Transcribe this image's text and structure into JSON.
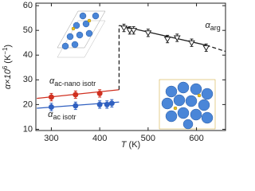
{
  "chart_data": {
    "type": "scatter",
    "x_label": {
      "symbol": "T",
      "unit": "(K)"
    },
    "y_label": {
      "symbol": "α×10",
      "exponent": "6",
      "unit": "(K",
      "unit_exponent": "−1",
      "close": ")"
    },
    "xlim": [
      268,
      660
    ],
    "xticks": [
      300,
      400,
      500,
      600
    ],
    "ylim": [
      9.5,
      61
    ],
    "yticks": [
      10,
      20,
      30,
      40,
      50,
      60
    ],
    "series": [
      {
        "color": "#3060c0",
        "marker": "circle",
        "x": [
          300,
          350,
          400,
          415,
          425
        ],
        "values": [
          19,
          19.5,
          20,
          20,
          20.5
        ],
        "errors": [
          1.5,
          1.5,
          1.5,
          1.5,
          1.5
        ]
      },
      {
        "color": "#d03020",
        "marker": "circle",
        "x": [
          300,
          350,
          400
        ],
        "values": [
          23,
          24,
          24.5
        ],
        "errors": [
          1.5,
          1.5,
          1.5
        ]
      },
      {
        "color": "#222222",
        "marker": "triangle-down",
        "x": [
          450,
          462,
          470,
          500,
          540,
          560,
          590,
          620
        ],
        "values": [
          51,
          50,
          50,
          49,
          46.5,
          47,
          45,
          43
        ],
        "errors": [
          1.5,
          1.5,
          1.5,
          1.5,
          1.5,
          1.5,
          1.5,
          1.5
        ]
      }
    ],
    "lines": [
      {
        "color": "#3060c0",
        "dashed": false,
        "x": [
          270,
          440
        ],
        "values": [
          18.5,
          21
        ]
      },
      {
        "color": "#d03020",
        "dashed": false,
        "x": [
          270,
          440
        ],
        "values": [
          22.5,
          26
        ]
      },
      {
        "color": "#222222",
        "dashed": false,
        "x": [
          440,
          620
        ],
        "values": [
          52,
          44
        ]
      },
      {
        "color": "#222222",
        "dashed": true,
        "x": [
          620,
          660
        ],
        "values": [
          44,
          41.5
        ]
      },
      {
        "color": "#222222",
        "dashed": true,
        "x": [
          440,
          440
        ],
        "values": [
          26,
          52
        ]
      }
    ],
    "annotations": [
      {
        "symbol": "α",
        "subscript": "arg",
        "x": 618,
        "y": 51
      },
      {
        "symbol": "α",
        "subscript": "ac-nano isotr",
        "x": 296,
        "y": 28.5
      },
      {
        "symbol": "α",
        "subscript": "ac isotr",
        "x": 293,
        "y": 15
      }
    ]
  }
}
